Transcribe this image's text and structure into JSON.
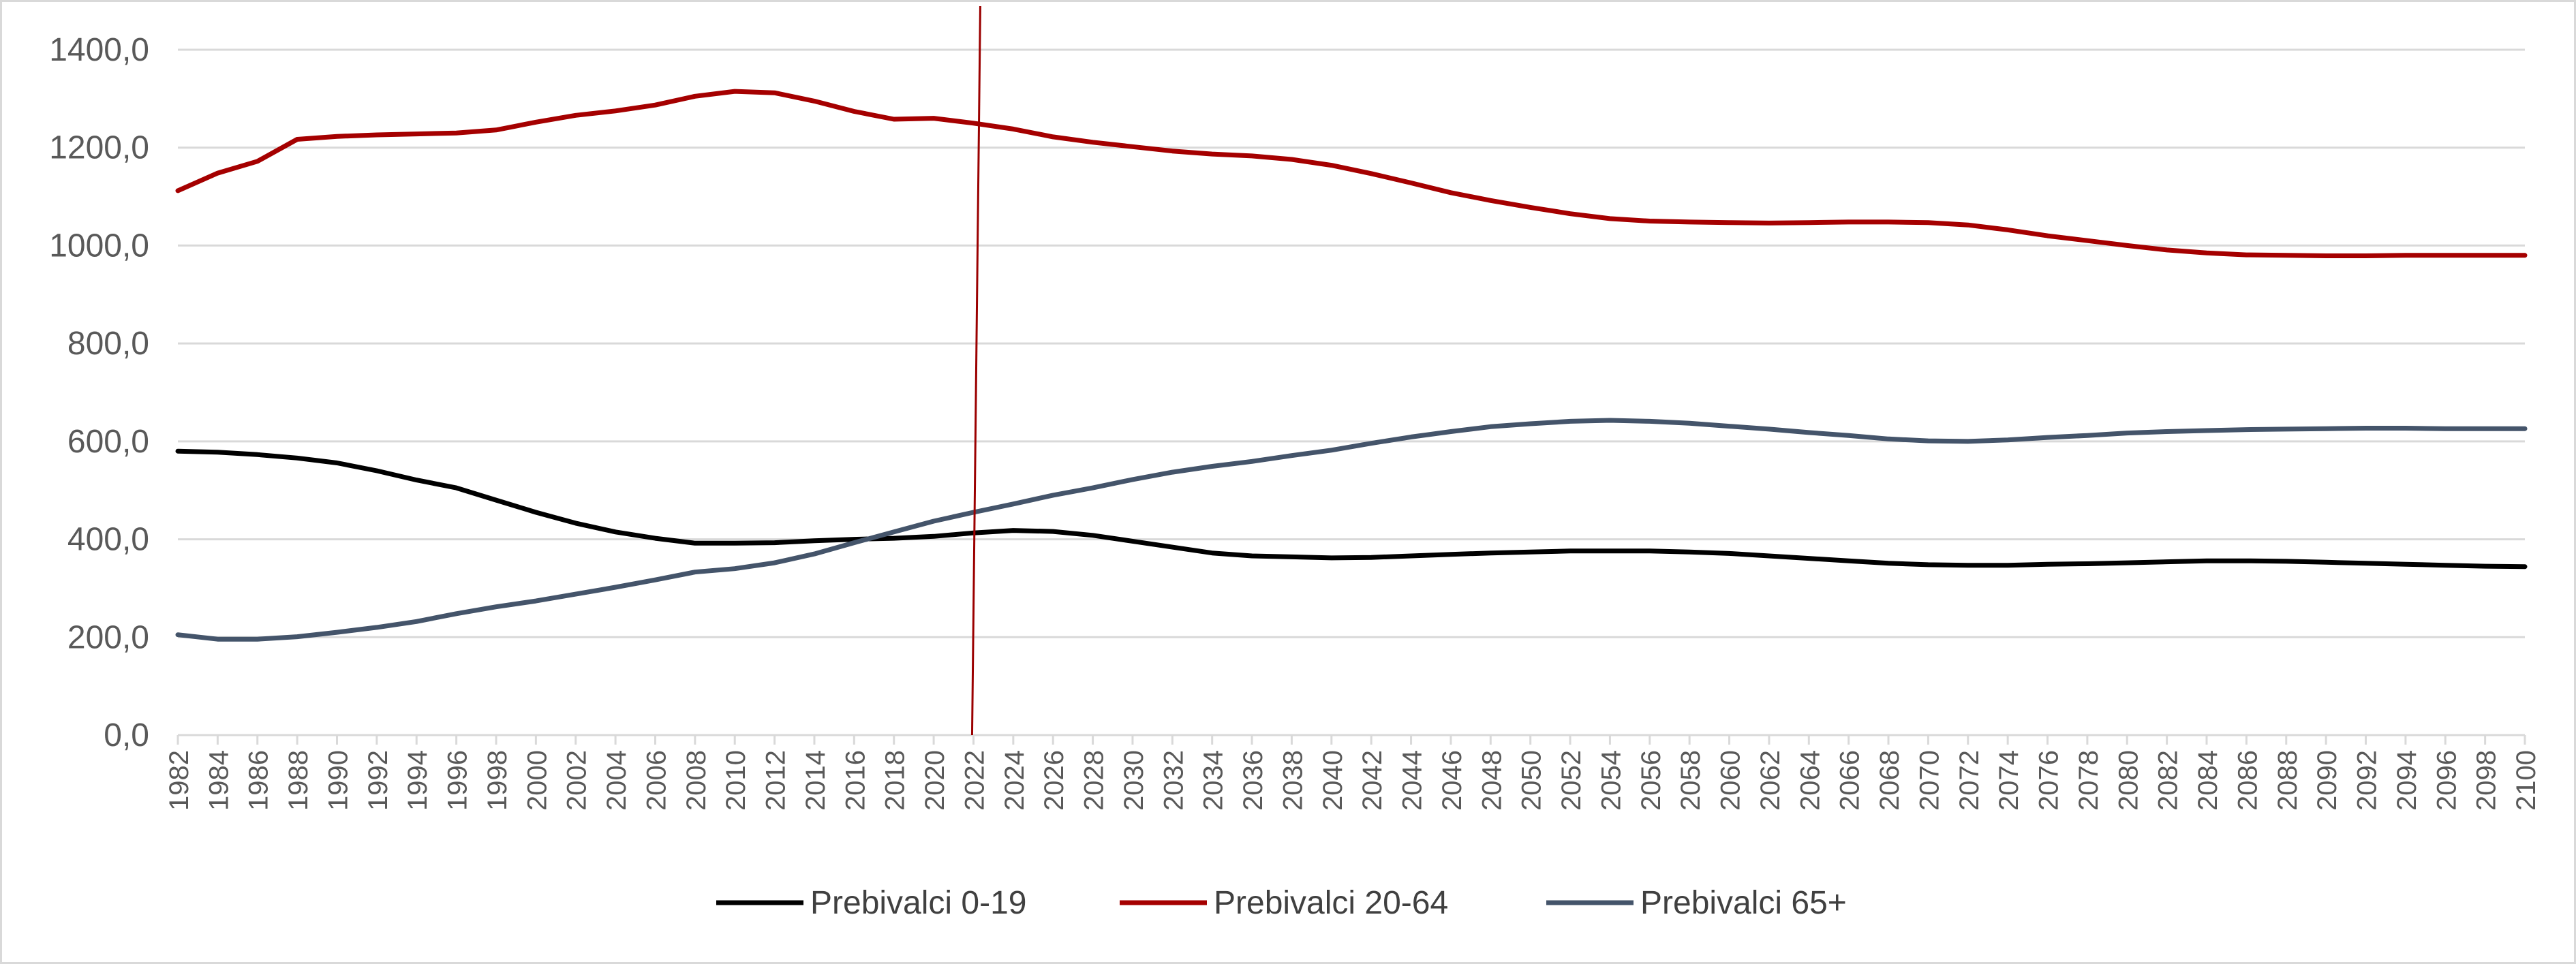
{
  "chart_data": {
    "type": "line",
    "title": "",
    "xlabel": "",
    "ylabel": "",
    "ylim": [
      0,
      1400
    ],
    "y_ticks": [
      "0,0",
      "200,0",
      "400,0",
      "600,0",
      "800,0",
      "1000,0",
      "1200,0",
      "1400,0"
    ],
    "x_ticks": [
      "1982",
      "1984",
      "1986",
      "1988",
      "1990",
      "1992",
      "1994",
      "1996",
      "1998",
      "2000",
      "2002",
      "2004",
      "2006",
      "2008",
      "2010",
      "2012",
      "2014",
      "2016",
      "2018",
      "2020",
      "2022",
      "2024",
      "2026",
      "2028",
      "2030",
      "2032",
      "2034",
      "2036",
      "2038",
      "2040",
      "2042",
      "2044",
      "2046",
      "2048",
      "2050",
      "2052",
      "2054",
      "2056",
      "2058",
      "2060",
      "2062",
      "2064",
      "2066",
      "2068",
      "2070",
      "2072",
      "2074",
      "2076",
      "2078",
      "2080",
      "2082",
      "2084",
      "2086",
      "2088",
      "2090",
      "2092",
      "2094",
      "2096",
      "2098",
      "2100"
    ],
    "grid": true,
    "legend_position": "bottom",
    "marker_line_year": 2022,
    "marker_line_color": "#9b0000",
    "x": [
      1982,
      1984,
      1986,
      1988,
      1990,
      1992,
      1994,
      1996,
      1998,
      2000,
      2002,
      2004,
      2006,
      2008,
      2010,
      2012,
      2014,
      2016,
      2018,
      2020,
      2022,
      2024,
      2026,
      2028,
      2030,
      2032,
      2034,
      2036,
      2038,
      2040,
      2042,
      2044,
      2046,
      2048,
      2050,
      2052,
      2054,
      2056,
      2058,
      2060,
      2062,
      2064,
      2066,
      2068,
      2070,
      2072,
      2074,
      2076,
      2078,
      2080,
      2082,
      2084,
      2086,
      2088,
      2090,
      2092,
      2094,
      2096,
      2098,
      2100
    ],
    "series": [
      {
        "name": "Prebivalci 0-19",
        "color": "#000000",
        "values": [
          580,
          578,
          573,
          566,
          556,
          540,
          521,
          505,
          480,
          455,
          433,
          415,
          402,
          392,
          392,
          393,
          397,
          400,
          402,
          406,
          413,
          418,
          416,
          408,
          396,
          384,
          372,
          366,
          364,
          362,
          363,
          366,
          369,
          372,
          374,
          376,
          376,
          376,
          374,
          371,
          366,
          361,
          356,
          351,
          348,
          347,
          347,
          349,
          350,
          352,
          354,
          356,
          356,
          355,
          353,
          351,
          349,
          347,
          345,
          344
        ]
      },
      {
        "name": "Prebivalci 20-64",
        "color": "#a50000",
        "values": [
          1112,
          1148,
          1172,
          1217,
          1223,
          1226,
          1228,
          1230,
          1236,
          1252,
          1266,
          1275,
          1287,
          1305,
          1315,
          1312,
          1295,
          1274,
          1258,
          1260,
          1250,
          1238,
          1222,
          1211,
          1202,
          1193,
          1187,
          1183,
          1176,
          1164,
          1147,
          1128,
          1108,
          1092,
          1078,
          1065,
          1055,
          1050,
          1048,
          1047,
          1046,
          1047,
          1048,
          1048,
          1047,
          1042,
          1032,
          1020,
          1010,
          1000,
          991,
          985,
          981,
          980,
          979,
          979,
          980,
          980,
          980,
          980
        ]
      },
      {
        "name": "Prebivalci 65+",
        "color": "#44546a",
        "values": [
          205,
          196,
          196,
          201,
          210,
          220,
          232,
          248,
          262,
          274,
          288,
          302,
          317,
          333,
          340,
          352,
          370,
          393,
          415,
          437,
          455,
          472,
          490,
          505,
          522,
          537,
          549,
          559,
          571,
          582,
          596,
          609,
          620,
          630,
          636,
          641,
          643,
          641,
          637,
          631,
          625,
          618,
          612,
          605,
          601,
          600,
          603,
          608,
          612,
          617,
          620,
          622,
          624,
          625,
          626,
          627,
          627,
          626,
          626,
          626
        ]
      }
    ]
  }
}
